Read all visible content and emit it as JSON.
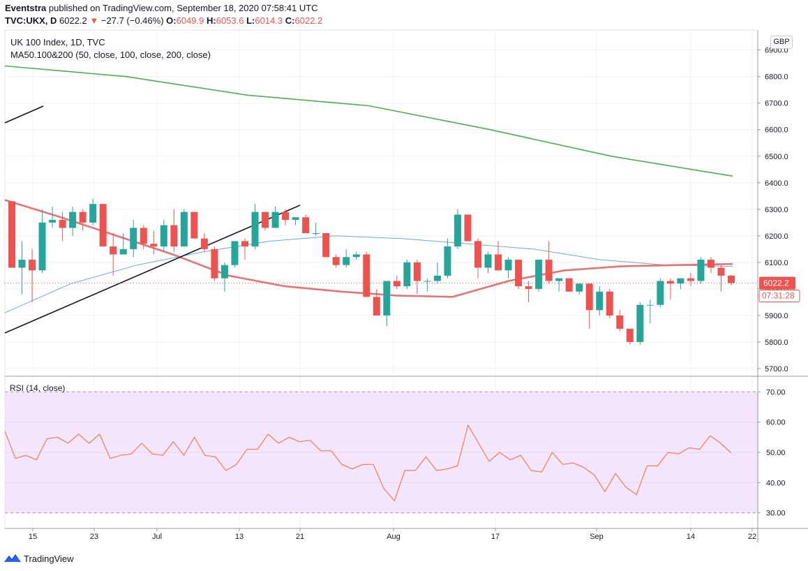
{
  "header": {
    "publisher": "Eventstra",
    "published_text": "published on TradingView.com, September 18, 2020 07:58:41 UTC",
    "symbol": "TVC:UKX, D",
    "last": "6022.2",
    "change": "−27.7 (−0.46%)",
    "o_label": "O:",
    "o": "6049.9",
    "h_label": "H:",
    "h": "6053.6",
    "l_label": "L:",
    "l": "6014.3",
    "c_label": "C:",
    "c": "6022.2"
  },
  "legend": {
    "title": "UK 100 Index, 1D, TVC",
    "ma": "MA50.100&200 (50, close, 100, close, 200, close)",
    "rsi": "RSI (14, close)"
  },
  "currency": "GBP",
  "price_badge": "6022.2",
  "countdown_badge": "07:31:28",
  "brand": "TradingView",
  "colors": {
    "up": "#26a69a",
    "down": "#ef5350",
    "ma50": "#6fa8dc",
    "ma100": "#e57373",
    "ma200": "#4caf50",
    "rsi": "#f57c4c",
    "rsi_band": "#f3e5fc"
  },
  "chart_data": [
    {
      "type": "candlestick",
      "title": "UK 100 Index, 1D, TVC",
      "ylim": [
        5650,
        6950
      ],
      "y_ticks": [
        "6900.0",
        "6800.0",
        "6700.0",
        "6600.0",
        "6500.0",
        "6400.0",
        "6300.0",
        "6200.0",
        "6100.0",
        "6000.0",
        "5900.0",
        "5800.0",
        "5700.0"
      ],
      "x_ticks": [
        "15",
        "23",
        "Jul",
        "13",
        "21",
        "Aug",
        "17",
        "Sep",
        "14",
        "22"
      ],
      "candles": [
        {
          "o": 6330,
          "h": 6330,
          "l": 6080,
          "c": 6080
        },
        {
          "o": 6080,
          "h": 6180,
          "l": 5980,
          "c": 6110
        },
        {
          "o": 6110,
          "h": 6150,
          "l": 5950,
          "c": 6070
        },
        {
          "o": 6070,
          "h": 6300,
          "l": 6060,
          "c": 6250
        },
        {
          "o": 6250,
          "h": 6310,
          "l": 6230,
          "c": 6260
        },
        {
          "o": 6260,
          "h": 6290,
          "l": 6180,
          "c": 6230
        },
        {
          "o": 6230,
          "h": 6310,
          "l": 6200,
          "c": 6290
        },
        {
          "o": 6290,
          "h": 6300,
          "l": 6220,
          "c": 6250
        },
        {
          "o": 6250,
          "h": 6340,
          "l": 6240,
          "c": 6320
        },
        {
          "o": 6320,
          "h": 6320,
          "l": 6160,
          "c": 6160
        },
        {
          "o": 6160,
          "h": 6210,
          "l": 6050,
          "c": 6130
        },
        {
          "o": 6130,
          "h": 6210,
          "l": 6130,
          "c": 6150
        },
        {
          "o": 6150,
          "h": 6260,
          "l": 6120,
          "c": 6230
        },
        {
          "o": 6230,
          "h": 6240,
          "l": 6150,
          "c": 6170
        },
        {
          "o": 6170,
          "h": 6220,
          "l": 6130,
          "c": 6160
        },
        {
          "o": 6160,
          "h": 6260,
          "l": 6140,
          "c": 6240
        },
        {
          "o": 6240,
          "h": 6300,
          "l": 6140,
          "c": 6160
        },
        {
          "o": 6160,
          "h": 6300,
          "l": 6160,
          "c": 6290
        },
        {
          "o": 6290,
          "h": 6290,
          "l": 6190,
          "c": 6190
        },
        {
          "o": 6190,
          "h": 6210,
          "l": 6140,
          "c": 6150
        },
        {
          "o": 6150,
          "h": 6160,
          "l": 6030,
          "c": 6040
        },
        {
          "o": 6040,
          "h": 6100,
          "l": 5990,
          "c": 6090
        },
        {
          "o": 6090,
          "h": 6180,
          "l": 6080,
          "c": 6180
        },
        {
          "o": 6180,
          "h": 6190,
          "l": 6110,
          "c": 6160
        },
        {
          "o": 6160,
          "h": 6320,
          "l": 6150,
          "c": 6290
        },
        {
          "o": 6290,
          "h": 6290,
          "l": 6220,
          "c": 6230
        },
        {
          "o": 6230,
          "h": 6310,
          "l": 6230,
          "c": 6290
        },
        {
          "o": 6290,
          "h": 6300,
          "l": 6240,
          "c": 6260
        },
        {
          "o": 6260,
          "h": 6270,
          "l": 6240,
          "c": 6270
        },
        {
          "o": 6270,
          "h": 6280,
          "l": 6220,
          "c": 6210
        },
        {
          "o": 6210,
          "h": 6250,
          "l": 6200,
          "c": 6210
        },
        {
          "o": 6210,
          "h": 6210,
          "l": 6120,
          "c": 6120
        },
        {
          "o": 6120,
          "h": 6130,
          "l": 6080,
          "c": 6090
        },
        {
          "o": 6090,
          "h": 6150,
          "l": 6080,
          "c": 6120
        },
        {
          "o": 6120,
          "h": 6140,
          "l": 6110,
          "c": 6130
        },
        {
          "o": 6130,
          "h": 6140,
          "l": 5970,
          "c": 5970
        },
        {
          "o": 5970,
          "h": 6000,
          "l": 5900,
          "c": 5900
        },
        {
          "o": 5900,
          "h": 6030,
          "l": 5860,
          "c": 6030
        },
        {
          "o": 6030,
          "h": 6050,
          "l": 6000,
          "c": 6010
        },
        {
          "o": 6010,
          "h": 6110,
          "l": 6000,
          "c": 6100
        },
        {
          "o": 6100,
          "h": 6110,
          "l": 5980,
          "c": 6030
        },
        {
          "o": 6030,
          "h": 6040,
          "l": 5990,
          "c": 6030
        },
        {
          "o": 6030,
          "h": 6100,
          "l": 6020,
          "c": 6050
        },
        {
          "o": 6050,
          "h": 6190,
          "l": 6040,
          "c": 6160
        },
        {
          "o": 6160,
          "h": 6300,
          "l": 6150,
          "c": 6280
        },
        {
          "o": 6280,
          "h": 6280,
          "l": 6180,
          "c": 6180
        },
        {
          "o": 6180,
          "h": 6190,
          "l": 6040,
          "c": 6080
        },
        {
          "o": 6080,
          "h": 6140,
          "l": 6060,
          "c": 6130
        },
        {
          "o": 6130,
          "h": 6180,
          "l": 6070,
          "c": 6070
        },
        {
          "o": 6070,
          "h": 6120,
          "l": 6040,
          "c": 6110
        },
        {
          "o": 6110,
          "h": 6110,
          "l": 6000,
          "c": 6010
        },
        {
          "o": 6010,
          "h": 6030,
          "l": 5950,
          "c": 6000
        },
        {
          "o": 6000,
          "h": 6110,
          "l": 5990,
          "c": 6110
        },
        {
          "o": 6110,
          "h": 6180,
          "l": 6020,
          "c": 6030
        },
        {
          "o": 6030,
          "h": 6040,
          "l": 5990,
          "c": 6040
        },
        {
          "o": 6040,
          "h": 6040,
          "l": 5990,
          "c": 5990
        },
        {
          "o": 5990,
          "h": 6020,
          "l": 5980,
          "c": 6020
        },
        {
          "o": 6020,
          "h": 6020,
          "l": 5850,
          "c": 5920
        },
        {
          "o": 5920,
          "h": 6010,
          "l": 5900,
          "c": 5990
        },
        {
          "o": 5990,
          "h": 6000,
          "l": 5890,
          "c": 5900
        },
        {
          "o": 5900,
          "h": 5920,
          "l": 5840,
          "c": 5850
        },
        {
          "o": 5850,
          "h": 5850,
          "l": 5790,
          "c": 5800
        },
        {
          "o": 5800,
          "h": 5950,
          "l": 5790,
          "c": 5940
        },
        {
          "o": 5940,
          "h": 5960,
          "l": 5870,
          "c": 5940
        },
        {
          "o": 5940,
          "h": 6040,
          "l": 5930,
          "c": 6030
        },
        {
          "o": 6030,
          "h": 6040,
          "l": 5960,
          "c": 6020
        },
        {
          "o": 6020,
          "h": 6040,
          "l": 6000,
          "c": 6040
        },
        {
          "o": 6040,
          "h": 6060,
          "l": 6010,
          "c": 6030
        },
        {
          "o": 6030,
          "h": 6120,
          "l": 6020,
          "c": 6110
        },
        {
          "o": 6110,
          "h": 6120,
          "l": 6060,
          "c": 6080
        },
        {
          "o": 6080,
          "h": 6090,
          "l": 5990,
          "c": 6050
        },
        {
          "o": 6050,
          "h": 6054,
          "l": 6014,
          "c": 6022
        }
      ],
      "ma200": [
        6840,
        6800,
        6730,
        6690,
        6600,
        6500,
        6425
      ],
      "ma100": [
        6335,
        6270,
        6200,
        6130,
        6050,
        6010,
        5990,
        5975,
        5970,
        6030,
        6070,
        6085,
        6090,
        6094
      ],
      "ma50": [
        5910,
        6020,
        6090,
        6140,
        6180,
        6200,
        6190,
        6170,
        6150,
        6110,
        6090,
        6085
      ]
    },
    {
      "type": "line",
      "title": "RSI (14, close)",
      "ylim": [
        25,
        75
      ],
      "band": [
        30,
        70
      ],
      "y_ticks": [
        "70.00",
        "60.00",
        "50.00",
        "40.00",
        "30.00"
      ],
      "values": [
        57,
        48,
        49,
        47.5,
        54.5,
        55,
        53,
        56,
        53,
        56,
        48,
        49,
        49.5,
        53,
        49.5,
        49,
        53.5,
        49,
        55,
        49,
        48.5,
        44,
        46,
        51,
        51,
        56,
        53,
        55,
        53.5,
        54,
        50.5,
        50.5,
        46,
        44.5,
        46,
        46,
        38,
        34,
        44,
        44,
        48.5,
        44,
        44.5,
        45.5,
        59,
        53,
        47,
        50,
        47.5,
        49,
        44,
        43.5,
        50,
        46,
        46.5,
        45,
        42.5,
        37,
        43,
        38.5,
        36,
        45.5,
        45.5,
        50,
        49.5,
        51.5,
        51,
        55.5,
        53,
        49.8
      ]
    }
  ]
}
